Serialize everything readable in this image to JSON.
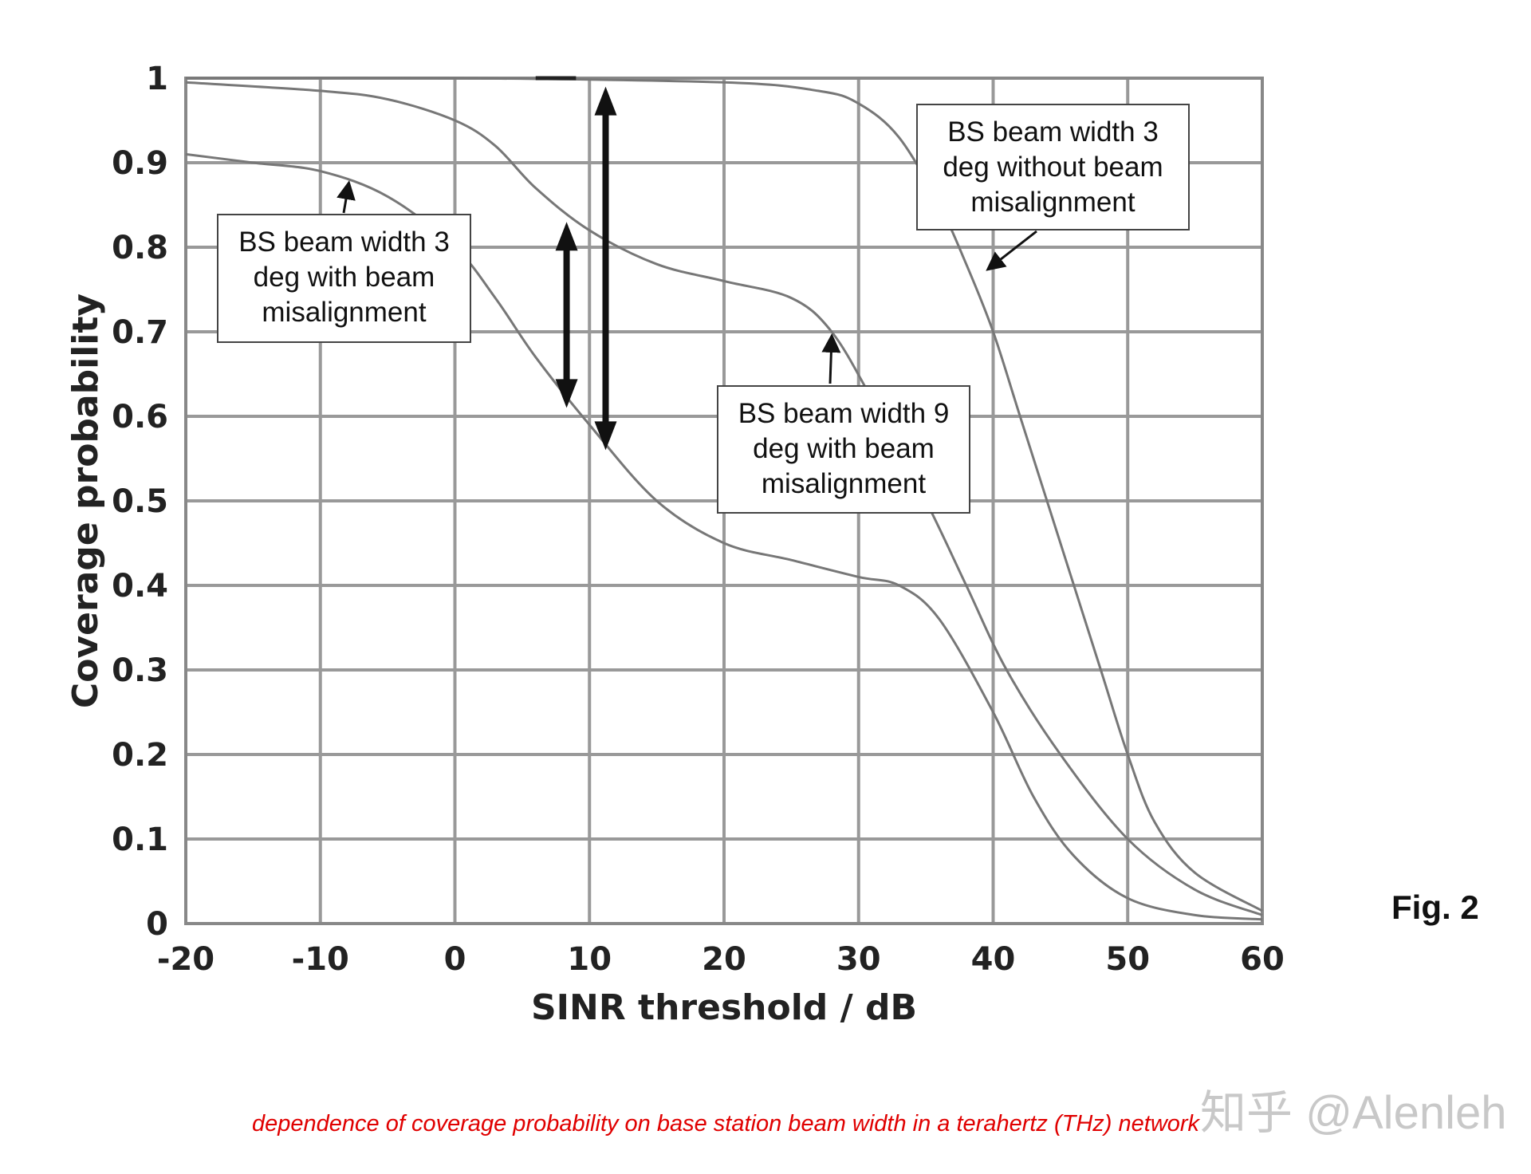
{
  "chart_data": {
    "type": "line",
    "title": "",
    "xlabel": "SINR threshold / dB",
    "ylabel": "Coverage probability",
    "xlim": [
      -20,
      60
    ],
    "ylim": [
      0,
      1
    ],
    "xticks": [
      -20,
      -10,
      0,
      10,
      20,
      30,
      40,
      50,
      60
    ],
    "yticks": [
      0,
      0.1,
      0.2,
      0.3,
      0.4,
      0.5,
      0.6,
      0.7,
      0.8,
      0.9,
      1
    ],
    "ytick_labels": [
      "0",
      "0.1",
      "0.2",
      "0.3",
      "0.4",
      "0.5",
      "0.6",
      "0.7",
      "0.8",
      "0.9",
      "1"
    ],
    "grid": true,
    "line_color": "#777777",
    "series": [
      {
        "name": "BS beam width 3 deg with beam misalignment",
        "x": [
          -20,
          -15,
          -10,
          -5,
          0,
          3,
          6,
          10,
          15,
          20,
          25,
          30,
          33,
          36,
          40,
          43,
          46,
          50,
          55,
          60
        ],
        "y": [
          0.91,
          0.9,
          0.89,
          0.86,
          0.8,
          0.74,
          0.67,
          0.59,
          0.5,
          0.45,
          0.43,
          0.41,
          0.4,
          0.36,
          0.25,
          0.15,
          0.08,
          0.03,
          0.01,
          0.005
        ]
      },
      {
        "name": "BS beam width 9 deg with beam misalignment",
        "x": [
          -20,
          -10,
          -5,
          0,
          3,
          6,
          10,
          15,
          20,
          25,
          28,
          31,
          35,
          38,
          41,
          45,
          50,
          55,
          60
        ],
        "y": [
          0.995,
          0.985,
          0.975,
          0.95,
          0.92,
          0.87,
          0.82,
          0.78,
          0.76,
          0.74,
          0.7,
          0.62,
          0.5,
          0.4,
          0.3,
          0.2,
          0.1,
          0.04,
          0.01
        ]
      },
      {
        "name": "BS beam width 3 deg without beam misalignment",
        "x": [
          -20,
          0,
          20,
          27,
          30,
          33,
          36,
          38,
          40,
          42,
          45,
          48,
          50,
          52,
          55,
          60
        ],
        "y": [
          1.0,
          1.0,
          0.995,
          0.985,
          0.97,
          0.93,
          0.85,
          0.78,
          0.7,
          0.6,
          0.45,
          0.3,
          0.2,
          0.12,
          0.06,
          0.015
        ]
      }
    ],
    "annotations": [
      {
        "text": [
          "BS beam width 3",
          "deg with beam",
          "misalignment"
        ]
      },
      {
        "text": [
          "BS beam width 3",
          "deg without beam",
          "misalignment"
        ]
      },
      {
        "text": [
          "BS beam width 9",
          "deg with beam",
          "misalignment"
        ]
      }
    ],
    "double_arrows": [
      {
        "x": 8.3,
        "y_from": 0.83,
        "y_to": 0.61
      },
      {
        "x": 11.2,
        "y_from": 0.99,
        "y_to": 0.56
      }
    ]
  },
  "figure_label": "Fig. 2",
  "caption": "dependence of coverage probability on base station beam width in a terahertz (THz) network",
  "watermark": "知乎 @Alenleh"
}
